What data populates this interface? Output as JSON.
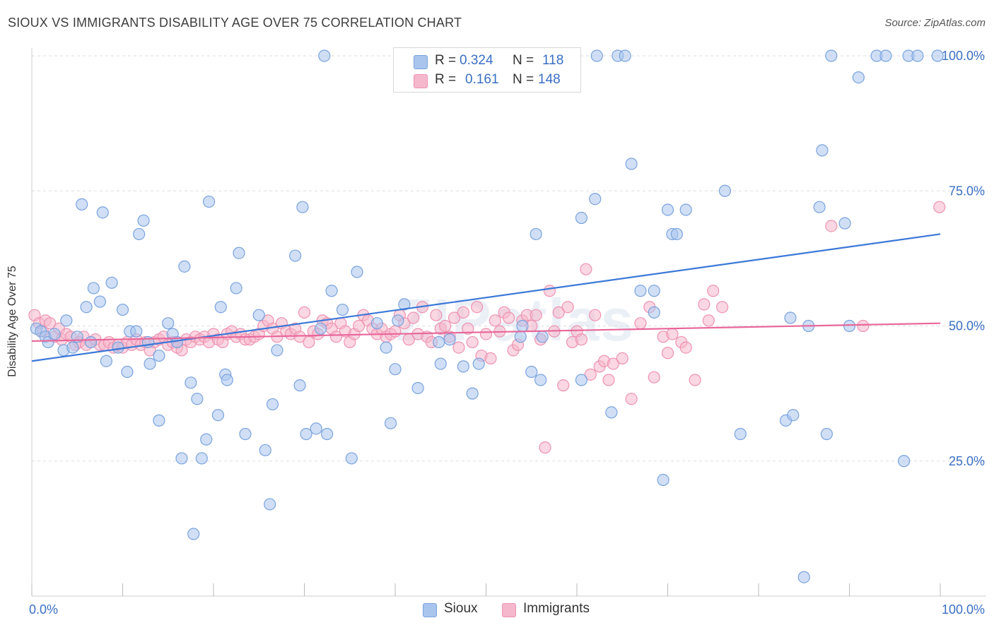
{
  "title": "SIOUX VS IMMIGRANTS DISABILITY AGE OVER 75 CORRELATION CHART",
  "source": "Source: ZipAtlas.com",
  "watermark": "ZIPatlas",
  "stats": {
    "row1": {
      "r_label": "R =",
      "r_value": "0.324",
      "n_label": "N =",
      "n_value": "118"
    },
    "row2": {
      "r_label": "R =",
      "r_value": "0.161",
      "n_label": "N =",
      "n_value": "148"
    }
  },
  "legend": {
    "sioux": "Sioux",
    "immigrants": "Immigrants"
  },
  "colors": {
    "sioux_fill": "#a9c5ee",
    "sioux_stroke": "#7aa3dd",
    "sioux_line": "#3b78d8",
    "imm_fill": "#f5b7cb",
    "imm_stroke": "#ee93b1",
    "imm_line": "#e8669a",
    "grid": "#dddddd",
    "tick_label": "#3a6fc4"
  },
  "chart_data": {
    "type": "scatter",
    "title": "SIOUX VS IMMIGRANTS DISABILITY AGE OVER 75 CORRELATION CHART",
    "xlabel": "",
    "ylabel": "Disability Age Over 75",
    "xlim": [
      0,
      100
    ],
    "ylim": [
      0,
      102
    ],
    "x_tick_labels": [
      "0.0%",
      "100.0%"
    ],
    "y_ticks": [
      25,
      50,
      75,
      100
    ],
    "y_tick_labels": [
      "25.0%",
      "50.0%",
      "75.0%",
      "100.0%"
    ],
    "grid": true,
    "legend_position": "bottom-center",
    "series": [
      {
        "name": "Sioux",
        "r": 0.324,
        "n": 118,
        "trend": {
          "x": [
            0,
            100
          ],
          "y": [
            43.5,
            67.0
          ]
        },
        "points": [
          [
            0.5,
            49.5
          ],
          [
            1.0,
            49.0
          ],
          [
            1.5,
            48.0
          ],
          [
            1.8,
            47.0
          ],
          [
            2.5,
            48.5
          ],
          [
            3.5,
            45.5
          ],
          [
            3.8,
            51.0
          ],
          [
            4.5,
            46.0
          ],
          [
            5.0,
            48.0
          ],
          [
            5.5,
            72.5
          ],
          [
            6.0,
            53.5
          ],
          [
            6.5,
            47.0
          ],
          [
            6.8,
            57.0
          ],
          [
            7.5,
            54.5
          ],
          [
            7.8,
            71.0
          ],
          [
            8.2,
            43.5
          ],
          [
            8.8,
            58.0
          ],
          [
            9.5,
            46.0
          ],
          [
            10.0,
            53.0
          ],
          [
            10.5,
            41.5
          ],
          [
            10.8,
            49.0
          ],
          [
            11.5,
            49.0
          ],
          [
            11.8,
            67.0
          ],
          [
            12.3,
            69.5
          ],
          [
            12.8,
            47.0
          ],
          [
            13.0,
            43.0
          ],
          [
            14.0,
            44.5
          ],
          [
            14.0,
            32.5
          ],
          [
            15.0,
            50.5
          ],
          [
            15.5,
            48.5
          ],
          [
            16.0,
            47.0
          ],
          [
            16.5,
            25.5
          ],
          [
            16.8,
            61.0
          ],
          [
            17.5,
            39.5
          ],
          [
            17.8,
            11.5
          ],
          [
            18.2,
            36.5
          ],
          [
            18.7,
            25.5
          ],
          [
            19.2,
            29.0
          ],
          [
            19.5,
            73.0
          ],
          [
            20.5,
            33.5
          ],
          [
            20.8,
            53.5
          ],
          [
            21.3,
            41.0
          ],
          [
            21.5,
            40.0
          ],
          [
            22.5,
            57.0
          ],
          [
            22.8,
            63.5
          ],
          [
            23.5,
            30.0
          ],
          [
            25.0,
            52.0
          ],
          [
            25.7,
            27.0
          ],
          [
            26.2,
            17.0
          ],
          [
            26.5,
            35.5
          ],
          [
            27.0,
            45.5
          ],
          [
            29.0,
            63.0
          ],
          [
            29.5,
            39.0
          ],
          [
            29.8,
            72.0
          ],
          [
            30.2,
            30.0
          ],
          [
            31.3,
            31.0
          ],
          [
            31.8,
            49.5
          ],
          [
            32.2,
            100.0
          ],
          [
            32.5,
            30.0
          ],
          [
            33.0,
            56.5
          ],
          [
            34.2,
            53.0
          ],
          [
            35.2,
            25.5
          ],
          [
            35.8,
            60.0
          ],
          [
            39.0,
            46.0
          ],
          [
            39.5,
            32.0
          ],
          [
            40.0,
            42.0
          ],
          [
            40.3,
            51.0
          ],
          [
            41.0,
            54.0
          ],
          [
            42.5,
            38.5
          ],
          [
            45.0,
            43.0
          ],
          [
            46.0,
            47.5
          ],
          [
            47.5,
            42.5
          ],
          [
            48.5,
            37.5
          ],
          [
            49.2,
            43.0
          ],
          [
            54.0,
            50.0
          ],
          [
            55.0,
            41.5
          ],
          [
            55.5,
            67.0
          ],
          [
            56.0,
            40.0
          ],
          [
            56.2,
            48.0
          ],
          [
            60.5,
            40.0
          ],
          [
            60.5,
            70.0
          ],
          [
            62.0,
            73.5
          ],
          [
            62.2,
            100.0
          ],
          [
            63.8,
            34.0
          ],
          [
            64.5,
            100.0
          ],
          [
            65.3,
            100.0
          ],
          [
            66.0,
            80.0
          ],
          [
            67.0,
            56.5
          ],
          [
            68.5,
            56.5
          ],
          [
            68.5,
            52.5
          ],
          [
            69.5,
            21.5
          ],
          [
            70.0,
            71.5
          ],
          [
            70.5,
            67.0
          ],
          [
            71.0,
            67.0
          ],
          [
            72.0,
            71.5
          ],
          [
            76.3,
            75.0
          ],
          [
            78.0,
            30.0
          ],
          [
            83.0,
            32.5
          ],
          [
            83.5,
            51.5
          ],
          [
            83.8,
            33.5
          ],
          [
            85.0,
            3.5
          ],
          [
            85.5,
            50.0
          ],
          [
            86.7,
            72.0
          ],
          [
            87.0,
            82.5
          ],
          [
            87.5,
            30.0
          ],
          [
            88.0,
            100.0
          ],
          [
            89.5,
            69.0
          ],
          [
            90.0,
            50.0
          ],
          [
            91.0,
            96.0
          ],
          [
            93.0,
            100.0
          ],
          [
            94.0,
            100.0
          ],
          [
            96.0,
            25.0
          ],
          [
            96.5,
            100.0
          ],
          [
            97.5,
            100.0
          ],
          [
            99.7,
            100.0
          ],
          [
            38.0,
            50.5
          ],
          [
            44.8,
            47.0
          ],
          [
            53.8,
            48.0
          ]
        ]
      },
      {
        "name": "Immigrants",
        "r": 0.161,
        "n": 148,
        "trend": {
          "x": [
            0,
            100
          ],
          "y": [
            47.2,
            50.5
          ]
        },
        "points": [
          [
            0.3,
            52.0
          ],
          [
            0.8,
            50.5
          ],
          [
            1.2,
            49.0
          ],
          [
            1.5,
            51.0
          ],
          [
            2.0,
            50.5
          ],
          [
            2.5,
            48.0
          ],
          [
            3.0,
            49.5
          ],
          [
            3.3,
            47.5
          ],
          [
            3.8,
            48.5
          ],
          [
            4.3,
            48.0
          ],
          [
            4.8,
            46.5
          ],
          [
            5.2,
            47.0
          ],
          [
            5.7,
            48.0
          ],
          [
            6.0,
            46.5
          ],
          [
            6.5,
            47.0
          ],
          [
            7.0,
            47.5
          ],
          [
            7.5,
            46.5
          ],
          [
            8.0,
            46.5
          ],
          [
            8.5,
            47.0
          ],
          [
            9.0,
            46.0
          ],
          [
            9.5,
            46.5
          ],
          [
            10.0,
            46.0
          ],
          [
            10.5,
            47.0
          ],
          [
            11.0,
            46.5
          ],
          [
            11.5,
            47.5
          ],
          [
            12.0,
            46.5
          ],
          [
            12.5,
            47.0
          ],
          [
            13.0,
            45.5
          ],
          [
            13.5,
            47.0
          ],
          [
            14.0,
            47.5
          ],
          [
            14.5,
            48.0
          ],
          [
            15.0,
            46.5
          ],
          [
            15.5,
            47.0
          ],
          [
            16.0,
            46.0
          ],
          [
            16.5,
            45.5
          ],
          [
            17.0,
            47.5
          ],
          [
            17.5,
            47.0
          ],
          [
            18.0,
            48.0
          ],
          [
            18.5,
            47.5
          ],
          [
            19.0,
            48.0
          ],
          [
            19.5,
            47.0
          ],
          [
            20.0,
            48.5
          ],
          [
            20.5,
            47.5
          ],
          [
            21.0,
            47.0
          ],
          [
            21.5,
            48.5
          ],
          [
            22.0,
            49.0
          ],
          [
            22.5,
            48.0
          ],
          [
            23.0,
            48.5
          ],
          [
            23.5,
            47.5
          ],
          [
            24.0,
            47.5
          ],
          [
            24.5,
            48.0
          ],
          [
            25.0,
            48.5
          ],
          [
            25.5,
            50.0
          ],
          [
            26.0,
            51.0
          ],
          [
            26.5,
            49.5
          ],
          [
            27.0,
            48.0
          ],
          [
            27.5,
            50.5
          ],
          [
            28.0,
            49.0
          ],
          [
            28.5,
            48.5
          ],
          [
            29.0,
            49.5
          ],
          [
            29.5,
            48.0
          ],
          [
            30.0,
            52.5
          ],
          [
            30.5,
            47.0
          ],
          [
            31.0,
            49.0
          ],
          [
            31.5,
            48.5
          ],
          [
            32.0,
            51.0
          ],
          [
            32.5,
            50.5
          ],
          [
            33.0,
            49.5
          ],
          [
            33.5,
            48.0
          ],
          [
            34.0,
            50.5
          ],
          [
            34.5,
            49.0
          ],
          [
            35.0,
            47.0
          ],
          [
            35.5,
            48.5
          ],
          [
            36.0,
            50.0
          ],
          [
            36.5,
            52.0
          ],
          [
            37.0,
            51.0
          ],
          [
            37.5,
            49.5
          ],
          [
            38.0,
            48.5
          ],
          [
            38.5,
            49.5
          ],
          [
            39.0,
            48.0
          ],
          [
            39.5,
            48.5
          ],
          [
            40.0,
            49.0
          ],
          [
            40.5,
            52.0
          ],
          [
            41.0,
            50.5
          ],
          [
            41.5,
            47.5
          ],
          [
            42.0,
            51.5
          ],
          [
            42.5,
            48.5
          ],
          [
            43.0,
            53.5
          ],
          [
            43.5,
            48.0
          ],
          [
            44.0,
            47.0
          ],
          [
            44.5,
            52.0
          ],
          [
            45.0,
            49.5
          ],
          [
            45.5,
            50.0
          ],
          [
            46.0,
            48.0
          ],
          [
            46.5,
            51.5
          ],
          [
            47.0,
            46.0
          ],
          [
            47.5,
            52.5
          ],
          [
            48.0,
            49.5
          ],
          [
            48.5,
            47.0
          ],
          [
            49.0,
            53.5
          ],
          [
            49.5,
            44.5
          ],
          [
            50.0,
            48.5
          ],
          [
            50.5,
            44.0
          ],
          [
            51.0,
            51.0
          ],
          [
            51.5,
            49.0
          ],
          [
            52.0,
            52.5
          ],
          [
            52.5,
            51.5
          ],
          [
            53.0,
            45.5
          ],
          [
            53.5,
            46.5
          ],
          [
            54.0,
            51.0
          ],
          [
            54.5,
            52.0
          ],
          [
            55.0,
            50.0
          ],
          [
            55.5,
            52.0
          ],
          [
            56.0,
            47.5
          ],
          [
            57.0,
            56.5
          ],
          [
            57.5,
            49.0
          ],
          [
            58.0,
            52.5
          ],
          [
            58.5,
            39.0
          ],
          [
            59.0,
            53.5
          ],
          [
            59.5,
            47.0
          ],
          [
            60.0,
            49.0
          ],
          [
            60.5,
            47.5
          ],
          [
            61.0,
            60.5
          ],
          [
            61.5,
            41.0
          ],
          [
            62.0,
            52.0
          ],
          [
            62.5,
            42.5
          ],
          [
            63.0,
            43.5
          ],
          [
            63.5,
            40.0
          ],
          [
            64.0,
            43.0
          ],
          [
            65.0,
            44.0
          ],
          [
            66.0,
            36.5
          ],
          [
            67.0,
            50.5
          ],
          [
            68.0,
            53.5
          ],
          [
            68.5,
            40.5
          ],
          [
            69.5,
            48.0
          ],
          [
            70.0,
            45.0
          ],
          [
            70.5,
            48.5
          ],
          [
            71.5,
            47.0
          ],
          [
            72.0,
            46.0
          ],
          [
            73.0,
            40.0
          ],
          [
            74.0,
            54.0
          ],
          [
            74.5,
            51.0
          ],
          [
            75.0,
            56.5
          ],
          [
            76.0,
            53.5
          ],
          [
            88.0,
            68.5
          ],
          [
            91.5,
            50.0
          ],
          [
            99.9,
            72.0
          ],
          [
            56.5,
            27.5
          ]
        ]
      }
    ]
  }
}
